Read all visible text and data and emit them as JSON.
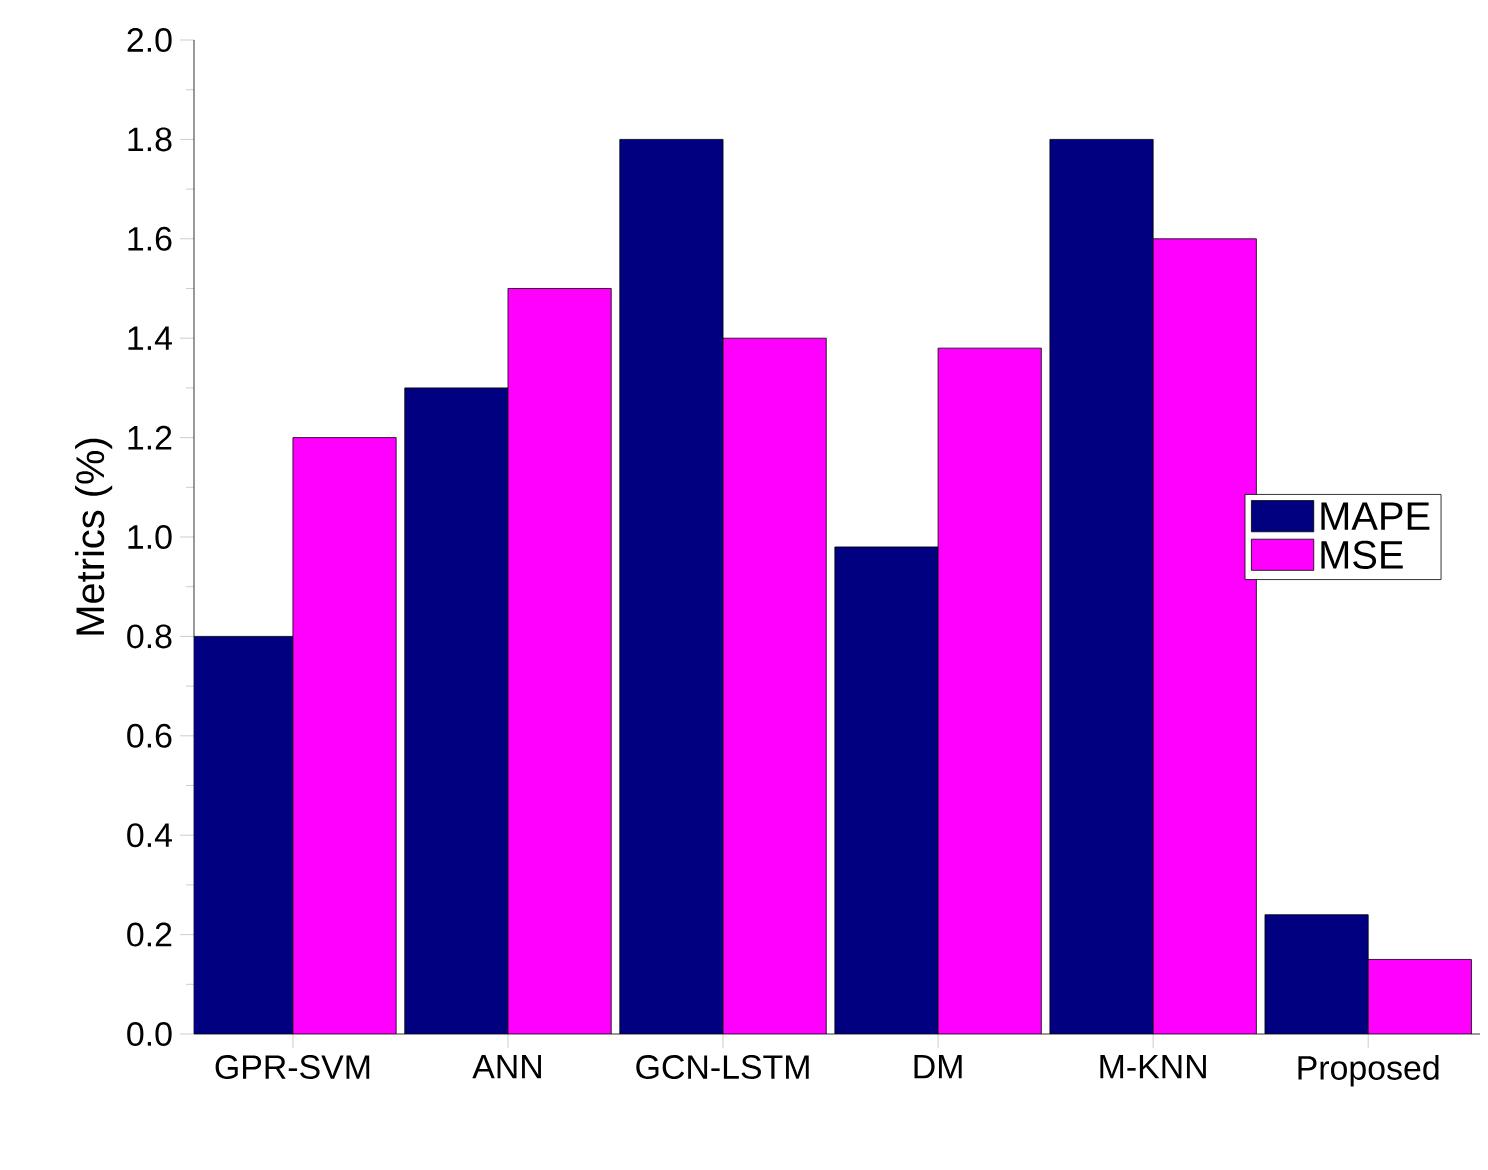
{
  "chart_data": {
    "type": "bar",
    "ylabel": "Metrics (%)",
    "categories": [
      "GPR-SVM",
      "ANN",
      "GCN-LSTM",
      "DM",
      "M-KNN",
      "Proposed"
    ],
    "series": [
      {
        "name": "MAPE",
        "color": "#000080",
        "values": [
          0.8,
          1.3,
          1.8,
          0.98,
          1.8,
          0.24
        ]
      },
      {
        "name": "MSE",
        "color": "#ff00ff",
        "values": [
          1.2,
          1.5,
          1.4,
          1.38,
          1.6,
          0.15
        ]
      }
    ],
    "ylim": [
      0,
      2.0
    ],
    "yticks": [
      {
        "value": 0,
        "label": "0.0"
      },
      0.2,
      0.4,
      0.6,
      0.8,
      {
        "value": 1.0,
        "label": "1.0"
      },
      1.2,
      1.4,
      1.6,
      1.8,
      {
        "value": 2.0,
        "label": "2.0"
      }
    ],
    "legend": "right",
    "grid": false
  }
}
